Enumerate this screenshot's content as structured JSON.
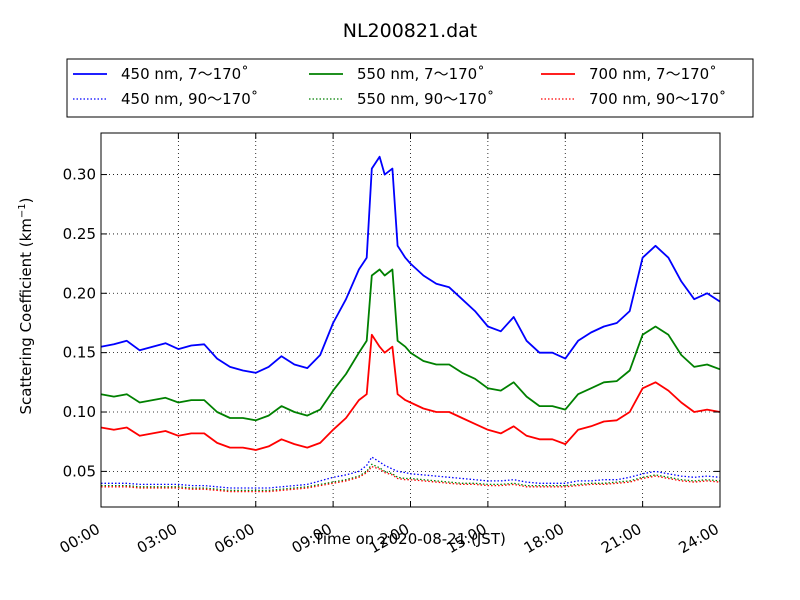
{
  "chart_data": {
    "type": "line",
    "title": "NL200821.dat",
    "xlabel": "Time on 2020-08-21 (JST)",
    "ylabel_main": "Scattering Coefficient (km",
    "ylabel_exp": "−1",
    "ylabel_close": ")",
    "x_unit": "hours",
    "xlim": [
      0,
      24
    ],
    "ylim": [
      0.02,
      0.335
    ],
    "x_ticks": [
      0,
      3,
      6,
      9,
      12,
      15,
      18,
      21,
      24
    ],
    "x_tick_labels": [
      "00:00",
      "03:00",
      "06:00",
      "09:00",
      "12:00",
      "15:00",
      "18:00",
      "21:00",
      "24:00"
    ],
    "y_ticks": [
      0.05,
      0.1,
      0.15,
      0.2,
      0.25,
      0.3
    ],
    "y_tick_labels": [
      "0.05",
      "0.10",
      "0.15",
      "0.20",
      "0.25",
      "0.30"
    ],
    "grid": true,
    "legend_position": "top",
    "x": [
      0,
      0.5,
      1,
      1.5,
      2,
      2.5,
      3,
      3.5,
      4,
      4.5,
      5,
      5.5,
      6,
      6.5,
      7,
      7.5,
      8,
      8.5,
      9,
      9.5,
      10,
      10.3,
      10.5,
      10.8,
      11,
      11.3,
      11.5,
      11.8,
      12,
      12.5,
      13,
      13.5,
      14,
      14.5,
      15,
      15.5,
      16,
      16.5,
      17,
      17.5,
      18,
      18.5,
      19,
      19.5,
      20,
      20.5,
      21,
      21.5,
      22,
      22.5,
      23,
      23.5,
      24
    ],
    "series": [
      {
        "name": "450 nm, 7～170˚",
        "color": "#0000ff",
        "style": "solid",
        "values": [
          0.155,
          0.157,
          0.16,
          0.152,
          0.155,
          0.158,
          0.153,
          0.156,
          0.157,
          0.145,
          0.138,
          0.135,
          0.133,
          0.138,
          0.147,
          0.14,
          0.137,
          0.148,
          0.175,
          0.195,
          0.22,
          0.23,
          0.305,
          0.315,
          0.3,
          0.305,
          0.24,
          0.23,
          0.225,
          0.215,
          0.208,
          0.205,
          0.195,
          0.185,
          0.172,
          0.168,
          0.18,
          0.16,
          0.15,
          0.15,
          0.145,
          0.16,
          0.167,
          0.172,
          0.175,
          0.185,
          0.23,
          0.24,
          0.23,
          0.21,
          0.195,
          0.2,
          0.193
        ]
      },
      {
        "name": "550 nm, 7～170˚",
        "color": "#008000",
        "style": "solid",
        "values": [
          0.115,
          0.113,
          0.115,
          0.108,
          0.11,
          0.112,
          0.108,
          0.11,
          0.11,
          0.1,
          0.095,
          0.095,
          0.093,
          0.097,
          0.105,
          0.1,
          0.097,
          0.102,
          0.118,
          0.132,
          0.15,
          0.16,
          0.215,
          0.22,
          0.215,
          0.22,
          0.16,
          0.155,
          0.15,
          0.143,
          0.14,
          0.14,
          0.133,
          0.128,
          0.12,
          0.118,
          0.125,
          0.113,
          0.105,
          0.105,
          0.102,
          0.115,
          0.12,
          0.125,
          0.126,
          0.135,
          0.165,
          0.172,
          0.165,
          0.148,
          0.138,
          0.14,
          0.136
        ]
      },
      {
        "name": "700 nm, 7～170˚",
        "color": "#ff0000",
        "style": "solid",
        "values": [
          0.087,
          0.085,
          0.087,
          0.08,
          0.082,
          0.084,
          0.08,
          0.082,
          0.082,
          0.074,
          0.07,
          0.07,
          0.068,
          0.071,
          0.077,
          0.073,
          0.07,
          0.074,
          0.085,
          0.095,
          0.11,
          0.115,
          0.165,
          0.155,
          0.15,
          0.155,
          0.115,
          0.11,
          0.108,
          0.103,
          0.1,
          0.1,
          0.095,
          0.09,
          0.085,
          0.082,
          0.088,
          0.08,
          0.077,
          0.077,
          0.073,
          0.085,
          0.088,
          0.092,
          0.093,
          0.1,
          0.12,
          0.125,
          0.118,
          0.108,
          0.1,
          0.102,
          0.1
        ]
      },
      {
        "name": "450 nm, 90～170˚",
        "color": "#0000ff",
        "style": "dotted",
        "values": [
          0.04,
          0.04,
          0.04,
          0.039,
          0.039,
          0.039,
          0.039,
          0.038,
          0.038,
          0.037,
          0.036,
          0.036,
          0.036,
          0.036,
          0.037,
          0.038,
          0.039,
          0.042,
          0.045,
          0.047,
          0.05,
          0.055,
          0.062,
          0.058,
          0.055,
          0.052,
          0.05,
          0.049,
          0.048,
          0.047,
          0.046,
          0.045,
          0.044,
          0.043,
          0.042,
          0.042,
          0.043,
          0.041,
          0.04,
          0.04,
          0.04,
          0.042,
          0.042,
          0.043,
          0.043,
          0.045,
          0.048,
          0.05,
          0.048,
          0.046,
          0.045,
          0.046,
          0.045
        ]
      },
      {
        "name": "550 nm, 90～170˚",
        "color": "#008000",
        "style": "dotted",
        "values": [
          0.038,
          0.038,
          0.038,
          0.037,
          0.037,
          0.037,
          0.037,
          0.036,
          0.036,
          0.035,
          0.034,
          0.034,
          0.034,
          0.034,
          0.035,
          0.036,
          0.037,
          0.039,
          0.041,
          0.043,
          0.046,
          0.05,
          0.056,
          0.053,
          0.05,
          0.048,
          0.045,
          0.044,
          0.044,
          0.043,
          0.042,
          0.041,
          0.04,
          0.04,
          0.039,
          0.039,
          0.04,
          0.038,
          0.038,
          0.038,
          0.038,
          0.039,
          0.04,
          0.04,
          0.041,
          0.042,
          0.045,
          0.047,
          0.045,
          0.043,
          0.042,
          0.043,
          0.042
        ]
      },
      {
        "name": "700 nm, 90～170˚",
        "color": "#ff0000",
        "style": "dotted",
        "values": [
          0.037,
          0.037,
          0.037,
          0.036,
          0.036,
          0.036,
          0.036,
          0.035,
          0.035,
          0.034,
          0.033,
          0.033,
          0.033,
          0.033,
          0.034,
          0.035,
          0.036,
          0.038,
          0.04,
          0.042,
          0.045,
          0.049,
          0.054,
          0.052,
          0.049,
          0.047,
          0.044,
          0.043,
          0.043,
          0.042,
          0.041,
          0.04,
          0.039,
          0.039,
          0.038,
          0.038,
          0.039,
          0.037,
          0.037,
          0.037,
          0.037,
          0.038,
          0.039,
          0.039,
          0.04,
          0.041,
          0.044,
          0.046,
          0.044,
          0.042,
          0.041,
          0.042,
          0.041
        ]
      }
    ]
  }
}
